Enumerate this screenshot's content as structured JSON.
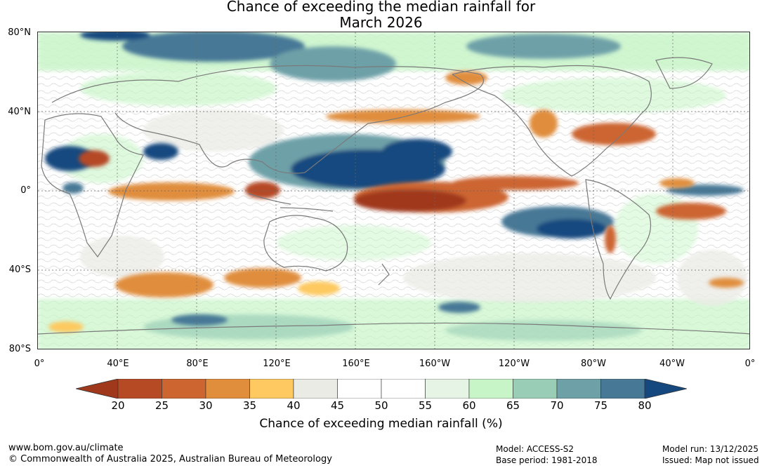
{
  "title": {
    "line1": "Chance of exceeding the median rainfall for",
    "line2": "March 2026"
  },
  "map": {
    "lat_labels": [
      "80°N",
      "40°N",
      "0°",
      "40°S",
      "80°S"
    ],
    "lon_labels": [
      "0°",
      "40°E",
      "80°E",
      "120°E",
      "160°E",
      "160°W",
      "120°W",
      "80°W",
      "40°W",
      "0°"
    ],
    "background_color": "#ffffff"
  },
  "colorbar": {
    "ticks": [
      "20",
      "25",
      "30",
      "35",
      "40",
      "45",
      "50",
      "55",
      "60",
      "65",
      "70",
      "75",
      "80"
    ],
    "colors": [
      "#a0391c",
      "#b54a25",
      "#cc6530",
      "#e08e3c",
      "#fdc960",
      "#ebebe6",
      "#ffffff",
      "#ffffff",
      "#e6f4e6",
      "#c8f5c8",
      "#99cdb6",
      "#6ea0a8",
      "#477896",
      "#15487f"
    ],
    "title": "Chance of exceeding median rainfall (%)"
  },
  "footer": {
    "website": "www.bom.gov.au/climate",
    "copyright": "© Commonwealth of Australia 2025, Australian Bureau of Meteorology",
    "model": "Model: ACCESS-S2",
    "base_period": "Base period: 1981-2018",
    "model_run": "Model run: 13/12/2025",
    "issued": "Issued: Map not issued"
  }
}
